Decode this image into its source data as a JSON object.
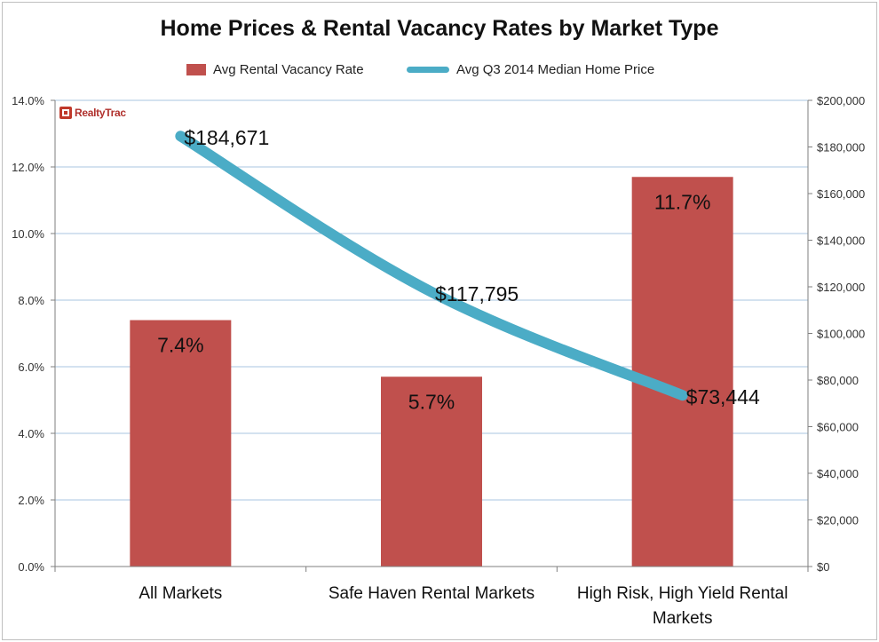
{
  "chart_data": {
    "type": "bar+line",
    "title": "Home Prices & Rental Vacancy Rates by Market Type",
    "categories": [
      "All Markets",
      "Safe Haven Rental Markets",
      "High Risk, High Yield Rental Markets"
    ],
    "series": [
      {
        "name": "Avg Rental Vacancy Rate",
        "type": "bar",
        "axis": "left",
        "values": [
          7.4,
          5.7,
          11.7
        ],
        "labels": [
          "7.4%",
          "5.7%",
          "11.7%"
        ],
        "color": "#c0504d"
      },
      {
        "name": "Avg Q3 2014 Median Home Price",
        "type": "line",
        "axis": "right",
        "values": [
          184671,
          117795,
          73444
        ],
        "labels": [
          "$184,671",
          "$117,795",
          "$73,444"
        ],
        "color": "#4bacc6"
      }
    ],
    "y_left": {
      "ylim": [
        0,
        14
      ],
      "ticks": [
        "0.0%",
        "2.0%",
        "4.0%",
        "6.0%",
        "8.0%",
        "10.0%",
        "12.0%",
        "14.0%"
      ]
    },
    "y_right": {
      "ylim": [
        0,
        200000
      ],
      "ticks": [
        "$0",
        "$20,000",
        "$40,000",
        "$60,000",
        "$80,000",
        "$100,000",
        "$120,000",
        "$140,000",
        "$160,000",
        "$180,000",
        "$200,000"
      ]
    },
    "grid": true,
    "legend_position": "top"
  },
  "logo": {
    "text": "RealtyTrac"
  }
}
